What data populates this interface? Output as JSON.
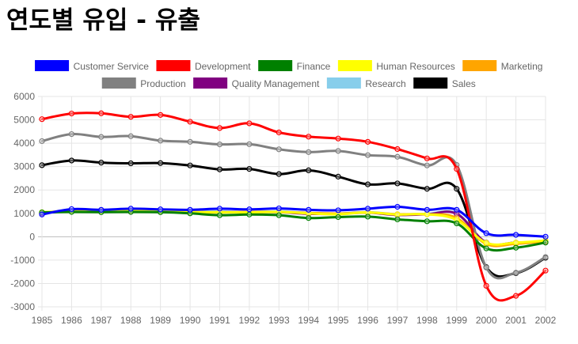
{
  "page": {
    "title": "연도별 유입 - 유출"
  },
  "chart_data": {
    "type": "line",
    "title": "연도별 유입 - 유출",
    "xlabel": "",
    "ylabel": "",
    "ylim": [
      -3000,
      6000
    ],
    "yticks": [
      6000,
      5000,
      4000,
      3000,
      2000,
      1000,
      0,
      -1000,
      -2000,
      -3000
    ],
    "grid": true,
    "legend_position": "top",
    "x": [
      "1985",
      "1986",
      "1987",
      "1988",
      "1989",
      "1990",
      "1991",
      "1992",
      "1993",
      "1994",
      "1995",
      "1996",
      "1997",
      "1998",
      "1999",
      "2000",
      "2001",
      "2002"
    ],
    "series": [
      {
        "name": "Customer Service",
        "color": "#0000ff",
        "values": [
          950,
          1180,
          1150,
          1200,
          1170,
          1150,
          1200,
          1170,
          1210,
          1150,
          1130,
          1200,
          1280,
          1150,
          1150,
          150,
          80,
          0
        ]
      },
      {
        "name": "Development",
        "color": "#ff0000",
        "values": [
          5030,
          5270,
          5280,
          5130,
          5210,
          4920,
          4650,
          4850,
          4460,
          4280,
          4200,
          4060,
          3750,
          3350,
          2900,
          -2100,
          -2530,
          -1450
        ]
      },
      {
        "name": "Finance",
        "color": "#008000",
        "values": [
          1040,
          1060,
          1050,
          1060,
          1050,
          1000,
          920,
          950,
          920,
          800,
          840,
          860,
          740,
          660,
          570,
          -500,
          -470,
          -250
        ]
      },
      {
        "name": "Human Resources",
        "color": "#ffff00",
        "values": [
          1050,
          1080,
          1070,
          1110,
          1090,
          1050,
          1050,
          1040,
          1060,
          1000,
          960,
          1040,
          950,
          960,
          720,
          -260,
          -250,
          -160
        ]
      },
      {
        "name": "Marketing",
        "color": "#ffa500",
        "values": [
          1040,
          1100,
          1100,
          1110,
          1100,
          1060,
          1040,
          1060,
          1060,
          1020,
          990,
          1040,
          960,
          960,
          800,
          -310,
          -300,
          -200
        ]
      },
      {
        "name": "Production",
        "color": "#808080",
        "values": [
          4090,
          4390,
          4270,
          4300,
          4110,
          4060,
          3950,
          3960,
          3740,
          3620,
          3670,
          3490,
          3420,
          3050,
          3070,
          -1320,
          -1540,
          -870
        ]
      },
      {
        "name": "Quality Management",
        "color": "#800080",
        "values": [
          1000,
          1100,
          1080,
          1090,
          1080,
          1050,
          1050,
          1050,
          1050,
          980,
          980,
          1030,
          930,
          960,
          980,
          -250,
          -250,
          -220
        ]
      },
      {
        "name": "Research",
        "color": "#87ceeb",
        "values": [
          1010,
          1110,
          1090,
          1110,
          1090,
          1080,
          1080,
          1060,
          1080,
          1020,
          990,
          1050,
          960,
          980,
          1000,
          -250,
          -270,
          -200
        ]
      },
      {
        "name": "Sales",
        "color": "#000000",
        "values": [
          3060,
          3260,
          3170,
          3140,
          3150,
          3050,
          2880,
          2900,
          2680,
          2840,
          2570,
          2240,
          2280,
          2050,
          2050,
          -1300,
          -1560,
          -900
        ]
      }
    ]
  }
}
